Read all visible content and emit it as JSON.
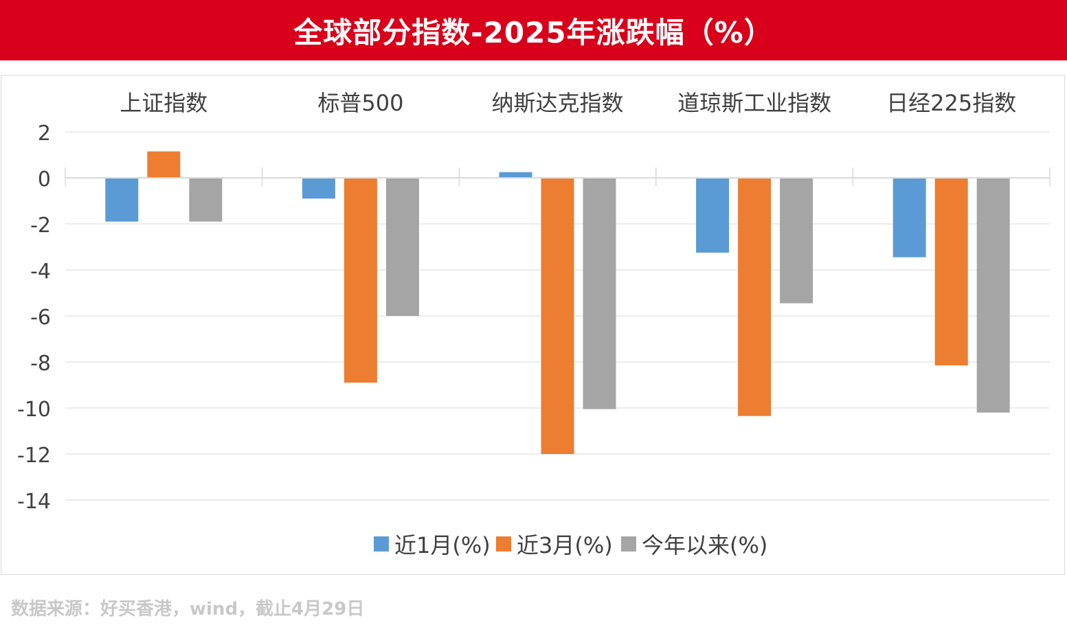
{
  "title": "全球部分指数-2025年涨跌幅（%）",
  "source_note": "数据来源：好买香港，wind，截止4月29日",
  "chart_data": {
    "type": "bar",
    "categories": [
      "上证指数",
      "标普500",
      "纳斯达克指数",
      "道琼斯工业指数",
      "日经225指数"
    ],
    "series": [
      {
        "name": "近1月(%)",
        "color": "#5b9bd5",
        "values": [
          -1.9,
          -0.9,
          0.25,
          -3.25,
          -3.45
        ]
      },
      {
        "name": "近3月(%)",
        "color": "#ed7d31",
        "values": [
          1.15,
          -8.9,
          -12.0,
          -10.35,
          -8.15
        ]
      },
      {
        "name": "今年以来(%)",
        "color": "#a5a5a5",
        "values": [
          -1.9,
          -6.0,
          -10.05,
          -5.45,
          -10.2
        ]
      }
    ],
    "yticks": [
      2,
      0,
      -2,
      -4,
      -6,
      -8,
      -10,
      -12,
      -14
    ],
    "ylim": [
      -14,
      2
    ],
    "grid": true,
    "legend_position": "bottom",
    "category_label_position": "top"
  }
}
